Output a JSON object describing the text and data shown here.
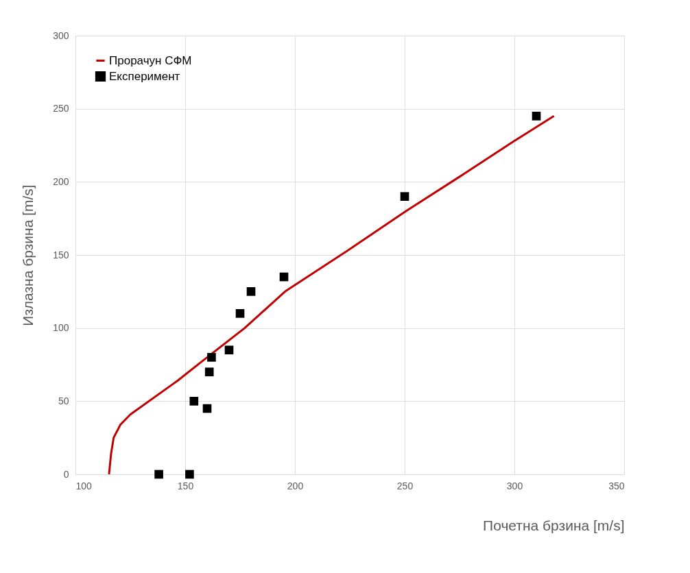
{
  "chart_data": {
    "type": "scatter",
    "xlabel": "Почетна брзина [m/s]",
    "ylabel": "Излазна брзина [m/s]",
    "xlim": [
      100,
      350
    ],
    "xticks": [
      100,
      150,
      200,
      250,
      300,
      350
    ],
    "ylim": [
      0,
      300
    ],
    "yticks": [
      0,
      50,
      100,
      150,
      200,
      250,
      300
    ],
    "grid": true,
    "legend": "top left",
    "series": [
      {
        "name": "Прорачун СФМ",
        "type": "line",
        "color": "#c00000",
        "marker": "none",
        "line_style": "solid",
        "x": [
          115.3,
          116.2,
          117.4,
          120.5,
          125.1,
          146.5,
          157,
          177.1,
          195.5,
          226,
          250.6,
          275,
          300,
          318
        ],
        "values": [
          0,
          13.7,
          25,
          34,
          41,
          64,
          76.5,
          100,
          125,
          155,
          180,
          203.5,
          228,
          245
        ]
      },
      {
        "name": "Експеримент",
        "color": "#000000",
        "marker": "square",
        "x": [
          138,
          152,
          154,
          160,
          161,
          162,
          170,
          175,
          180,
          195,
          250,
          310
        ],
        "values": [
          0,
          0,
          50,
          45,
          70,
          80,
          85,
          110,
          125,
          135,
          190,
          245
        ]
      }
    ]
  }
}
